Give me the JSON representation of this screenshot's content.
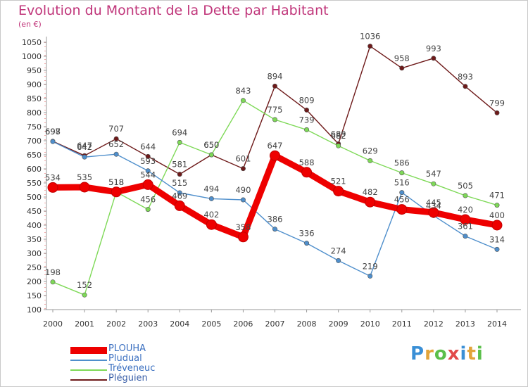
{
  "title": "Evolution du Montant de la Dette par Habitant",
  "subtitle": "(en €)",
  "logo": "Proxiti",
  "chart_data": {
    "type": "line",
    "title": "Evolution du Montant de la Dette par Habitant",
    "ylabel": "(en €)",
    "xlabel": "",
    "x": [
      "2000",
      "2001",
      "2002",
      "2003",
      "2004",
      "2005",
      "2006",
      "2007",
      "2008",
      "2009",
      "2010",
      "2011",
      "2012",
      "2013",
      "2014"
    ],
    "ylim": [
      100,
      1050
    ],
    "yticks": [
      100,
      150,
      200,
      250,
      300,
      350,
      400,
      450,
      500,
      550,
      600,
      650,
      700,
      750,
      800,
      850,
      900,
      950,
      1000,
      1050
    ],
    "grid": false,
    "legend_position": "bottom-left",
    "series": [
      {
        "name": "PLOUHA",
        "color": "#ee0000",
        "values": [
          534,
          535,
          518,
          544,
          469,
          402,
          358,
          647,
          588,
          521,
          482,
          456,
          445,
          420,
          400
        ]
      },
      {
        "name": "Pludual",
        "color": "#4f8fcc",
        "values": [
          697,
          642,
          652,
          593,
          515,
          494,
          490,
          386,
          336,
          274,
          219,
          516,
          434,
          361,
          314
        ]
      },
      {
        "name": "Tréveneuc",
        "color": "#7ed957",
        "values": [
          198,
          152,
          518,
          456,
          694,
          650,
          843,
          775,
          739,
          682,
          629,
          586,
          547,
          505,
          471
        ]
      },
      {
        "name": "Pléguien",
        "color": "#6e1a1a",
        "values": [
          698,
          647,
          707,
          644,
          581,
          650,
          601,
          894,
          809,
          689,
          1036,
          958,
          993,
          893,
          799
        ]
      }
    ]
  }
}
